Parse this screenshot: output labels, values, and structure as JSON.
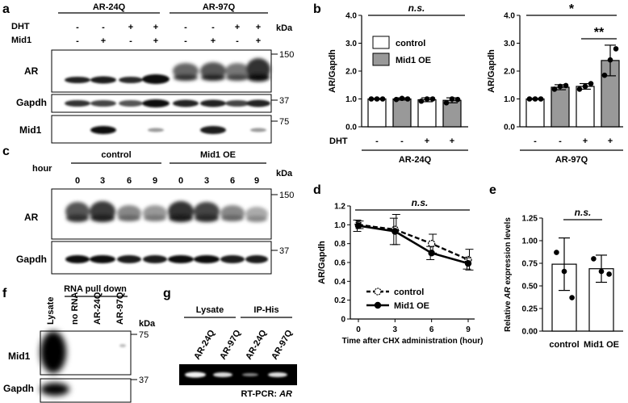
{
  "panels": {
    "a": {
      "letter": "a",
      "groups": [
        "AR-24Q",
        "AR-97Q"
      ],
      "dht_label": "DHT",
      "mid1_label": "Mid1",
      "kda_label": "kDa",
      "dht_signs": [
        "-",
        "-",
        "+",
        "+",
        "-",
        "-",
        "+",
        "+"
      ],
      "mid1_signs": [
        "-",
        "+",
        "-",
        "+",
        "-",
        "+",
        "-",
        "+"
      ],
      "blots": [
        {
          "label": "AR",
          "marker": "150"
        },
        {
          "label": "Gapdh",
          "marker": "37"
        },
        {
          "label": "Mid1",
          "marker": "75"
        }
      ]
    },
    "b": {
      "letter": "b",
      "legend": [
        {
          "label": "control",
          "color": "#ffffff"
        },
        {
          "label": "Mid1 OE",
          "color": "#999999"
        }
      ],
      "dht_label": "DHT",
      "dht_signs": [
        "-",
        "-",
        "+",
        "+"
      ],
      "left_sig": "n.s.",
      "right_sig_wide": "*",
      "right_sig_narrow": "**"
    },
    "c": {
      "letter": "c",
      "groups": [
        "control",
        "Mid1 OE"
      ],
      "hour_label": "hour",
      "hours": [
        "0",
        "3",
        "6",
        "9",
        "0",
        "3",
        "6",
        "9"
      ],
      "kda_label": "kDa",
      "blots": [
        {
          "label": "AR",
          "marker": "150"
        },
        {
          "label": "Gapdh",
          "marker": "37"
        }
      ]
    },
    "d": {
      "letter": "d",
      "sig": "n.s."
    },
    "e": {
      "letter": "e",
      "sig": "n.s."
    },
    "f": {
      "letter": "f",
      "header": "RNA pull down",
      "lanes": [
        "Lysate",
        "no RNA",
        "AR-24Q",
        "AR-97Q"
      ],
      "kda_label": "kDa",
      "blots": [
        {
          "label": "Mid1",
          "marker": "75"
        },
        {
          "label": "Gapdh",
          "marker": "37"
        }
      ]
    },
    "g": {
      "letter": "g",
      "groups": [
        "Lysate",
        "IP-His"
      ],
      "lanes": [
        "AR-24Q",
        "AR-97Q",
        "AR-24Q",
        "AR-97Q"
      ],
      "caption_prefix": "RT-PCR: ",
      "caption_gene": "AR"
    }
  },
  "chart_data": [
    {
      "id": "b-left",
      "type": "bar",
      "ylabel": "AR/Gapdh",
      "xlabel": "AR-24Q",
      "ylim": [
        0,
        4.0
      ],
      "yticks": [
        "0.0",
        "1.0",
        "2.0",
        "3.0",
        "4.0"
      ],
      "categories": [
        "-",
        "-",
        "+",
        "+"
      ],
      "values": [
        1.0,
        1.0,
        0.97,
        0.95
      ],
      "errors": [
        0.02,
        0.04,
        0.07,
        0.09
      ],
      "fills": [
        "#ffffff",
        "#999999",
        "#ffffff",
        "#999999"
      ],
      "points": [
        [
          1.0,
          1.0,
          1.0
        ],
        [
          0.98,
          1.02,
          1.0
        ],
        [
          0.92,
          1.0,
          1.0
        ],
        [
          0.86,
          1.0,
          0.98
        ]
      ]
    },
    {
      "id": "b-right",
      "type": "bar",
      "ylabel": "AR/Gapdh",
      "xlabel": "AR-97Q",
      "ylim": [
        0,
        4.0
      ],
      "yticks": [
        "0.0",
        "1.0",
        "2.0",
        "3.0",
        "4.0"
      ],
      "categories": [
        "-",
        "-",
        "+",
        "+"
      ],
      "values": [
        1.0,
        1.42,
        1.45,
        2.38
      ],
      "errors": [
        0.02,
        0.09,
        0.1,
        0.55
      ],
      "fills": [
        "#ffffff",
        "#999999",
        "#ffffff",
        "#999999"
      ],
      "points": [
        [
          1.0,
          1.0,
          1.0
        ],
        [
          1.35,
          1.45,
          1.48
        ],
        [
          1.35,
          1.45,
          1.55
        ],
        [
          1.85,
          2.4,
          2.8
        ]
      ]
    },
    {
      "id": "d",
      "type": "line",
      "ylabel": "AR/Gapdh",
      "xlabel": "Time after CHX administration (hour)",
      "ylim": [
        0,
        1.2
      ],
      "yticks": [
        "0",
        "0.2",
        "0.4",
        "0.6",
        "0.8",
        "1.0",
        "1.2"
      ],
      "x": [
        0,
        3,
        6,
        9
      ],
      "xticks": [
        "0",
        "3",
        "6",
        "9"
      ],
      "series": [
        {
          "name": "control",
          "values": [
            1.0,
            0.95,
            0.8,
            0.63
          ],
          "errors": [
            0.04,
            0.16,
            0.1,
            0.11
          ]
        },
        {
          "name": "Mid1 OE",
          "values": [
            0.99,
            0.93,
            0.7,
            0.59
          ],
          "errors": [
            0.06,
            0.14,
            0.07,
            0.06
          ]
        }
      ]
    },
    {
      "id": "e",
      "type": "bar",
      "ylabel_prefix": "Relative ",
      "ylabel_gene": "AR",
      "ylabel_suffix": " expression levels",
      "ylim": [
        0,
        1.25
      ],
      "yticks": [
        "0.00",
        "0.25",
        "0.50",
        "0.75",
        "1.00",
        "1.25"
      ],
      "categories": [
        "control",
        "Mid1 OE"
      ],
      "values": [
        0.74,
        0.69
      ],
      "errors": [
        0.29,
        0.15
      ],
      "fills": [
        "#ffffff",
        "#ffffff"
      ],
      "points": [
        [
          0.87,
          0.66,
          0.37
        ],
        [
          0.8,
          0.66,
          0.63
        ]
      ]
    }
  ]
}
